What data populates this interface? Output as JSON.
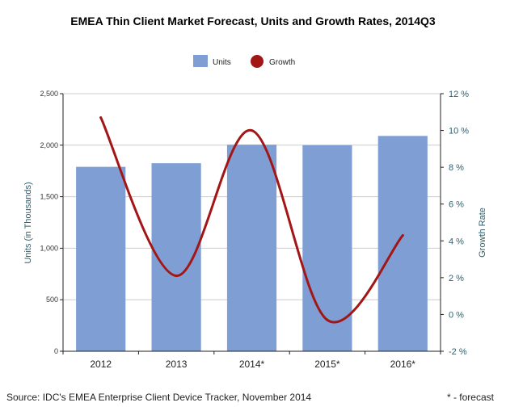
{
  "chart_data": {
    "type": "bar",
    "title": "EMEA Thin Client Market Forecast, Units and Growth Rates, 2014Q3",
    "categories": [
      "2012",
      "2013",
      "2014*",
      "2015*",
      "2016*"
    ],
    "series": [
      {
        "name": "Units",
        "type": "bar",
        "axis": "left",
        "values": [
          1790,
          1825,
          2005,
          2000,
          2090
        ]
      },
      {
        "name": "Growth",
        "type": "line",
        "axis": "right",
        "values": [
          10.7,
          2.1,
          10.0,
          -0.3,
          4.3
        ]
      }
    ],
    "ylabel": "Units (in Thousands)",
    "ylim": [
      0,
      2500
    ],
    "y_ticks": [
      "0",
      "500",
      "1,000",
      "1,500",
      "2,000",
      "2,500"
    ],
    "y_tick_values": [
      0,
      500,
      1000,
      1500,
      2000,
      2500
    ],
    "y2label": "Growth Rate",
    "y2lim": [
      -2,
      12
    ],
    "y2_ticks": [
      "-2 %",
      "0 %",
      "2 %",
      "4 %",
      "6 %",
      "8 %",
      "10 %",
      "12 %"
    ],
    "y2_tick_values": [
      -2,
      0,
      2,
      4,
      6,
      8,
      10,
      12
    ],
    "grid": true,
    "legend": {
      "placement": "top-center",
      "entries": [
        "Units",
        "Growth"
      ]
    },
    "colors": {
      "bars": "#7f9fd4",
      "line": "#a31616",
      "grid": "#cccccc",
      "axis": "#222222"
    }
  },
  "footer": {
    "source": "Source: IDC's EMEA Enterprise Client Device Tracker, November 2014",
    "note": "* - forecast"
  }
}
